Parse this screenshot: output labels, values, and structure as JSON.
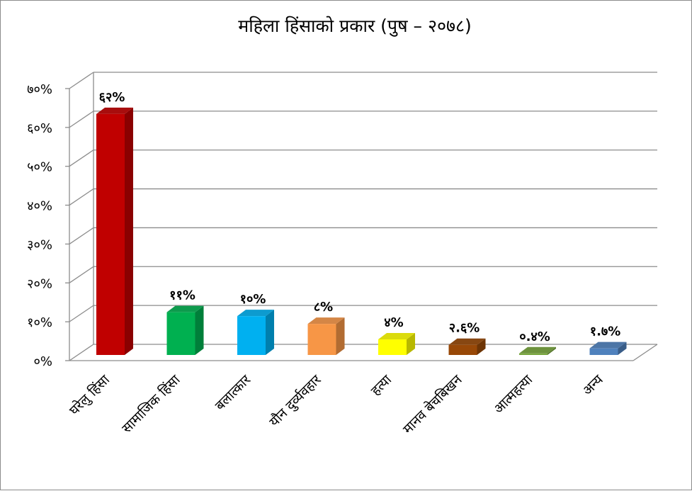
{
  "chart_data": {
    "type": "bar",
    "title": "महिला हिंसाको प्रकार (पुष – २०७८)",
    "categories": [
      "घरेलु हिंसा",
      "सामाजिक हिंसा",
      "बलात्कार",
      "यौन दुर्व्यवहार",
      "हत्या",
      "मानव बेचबिखन",
      "आत्महत्या",
      "अन्य"
    ],
    "values": [
      62,
      11,
      10,
      8,
      4,
      2.6,
      0.4,
      1.7
    ],
    "data_labels": [
      "६२%",
      "११%",
      "१०%",
      "८%",
      "४%",
      "२.६%",
      "०.४%",
      "१.७%"
    ],
    "ylim": [
      0,
      70
    ],
    "y_ticks": [
      0,
      10,
      20,
      30,
      40,
      50,
      60,
      70
    ],
    "y_tick_labels": [
      "०%",
      "१०%",
      "२०%",
      "३०%",
      "४०%",
      "५०%",
      "६०%",
      "७०%"
    ],
    "grid": true,
    "legend": false,
    "colors": [
      "#C00000",
      "#00B050",
      "#00B0F0",
      "#F79646",
      "#FFFF00",
      "#984807",
      "#77A53C",
      "#4F81BD"
    ]
  }
}
